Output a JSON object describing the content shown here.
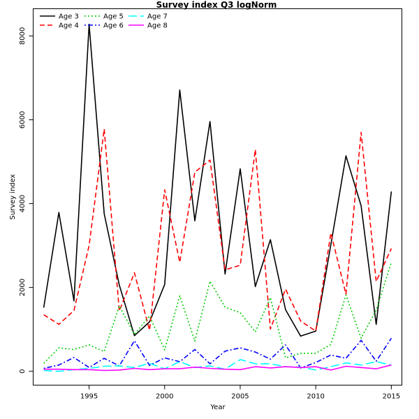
{
  "chart_data": {
    "type": "line",
    "title": "Survey index Q3 logNorm",
    "xlabel": "Year",
    "ylabel": "Survey index",
    "xlim": [
      1991.3,
      2015.7
    ],
    "ylim": [
      -330,
      8650
    ],
    "x_ticks": [
      "1995",
      "2000",
      "2005",
      "2010",
      "2015"
    ],
    "y_ticks": [
      "0",
      "2000",
      "4000",
      "6000",
      "8000"
    ],
    "grid": false,
    "legend_position": "top-left",
    "x": [
      1992,
      1993,
      1994,
      1995,
      1996,
      1997,
      1998,
      1999,
      2000,
      2001,
      2002,
      2003,
      2004,
      2005,
      2006,
      2007,
      2008,
      2009,
      2010,
      2011,
      2012,
      2013,
      2014,
      2015
    ],
    "series": [
      {
        "name": "Age 3",
        "color": "#000000",
        "dash": "solid",
        "values": [
          1520,
          3790,
          1680,
          8280,
          3760,
          2060,
          850,
          1180,
          2070,
          6710,
          3590,
          5960,
          2320,
          4830,
          2020,
          3140,
          1470,
          840,
          960,
          3020,
          5140,
          3950,
          1120,
          4290
        ]
      },
      {
        "name": "Age 4",
        "color": "#ff0000",
        "dash": "dashed",
        "values": [
          1350,
          1120,
          1450,
          3000,
          5780,
          1440,
          2350,
          980,
          4330,
          2600,
          4750,
          5040,
          2420,
          2530,
          5290,
          1010,
          1960,
          1200,
          960,
          3300,
          1840,
          5700,
          2140,
          2930
        ]
      },
      {
        "name": "Age 5",
        "color": "#00cc00",
        "dash": "dotted",
        "values": [
          190,
          560,
          520,
          630,
          470,
          1560,
          880,
          1320,
          510,
          1800,
          720,
          2150,
          1530,
          1400,
          940,
          1760,
          320,
          430,
          430,
          640,
          1820,
          790,
          1460,
          2600
        ]
      },
      {
        "name": "Age 6",
        "color": "#0000ff",
        "dash": "dotdash",
        "values": [
          70,
          150,
          330,
          90,
          310,
          130,
          730,
          140,
          320,
          230,
          520,
          180,
          480,
          560,
          460,
          290,
          630,
          80,
          210,
          390,
          310,
          740,
          240,
          790
        ]
      },
      {
        "name": "Age 7",
        "color": "#00ffff",
        "dash": "longdash",
        "values": [
          20,
          0,
          40,
          70,
          120,
          130,
          90,
          190,
          60,
          230,
          90,
          130,
          50,
          280,
          180,
          180,
          110,
          100,
          30,
          110,
          200,
          150,
          230,
          150
        ]
      },
      {
        "name": "Age 8",
        "color": "#ff00ff",
        "dash": "solid",
        "values": [
          50,
          50,
          40,
          40,
          20,
          30,
          70,
          40,
          60,
          60,
          100,
          70,
          50,
          40,
          110,
          80,
          110,
          90,
          110,
          30,
          120,
          90,
          60,
          150
        ]
      }
    ]
  }
}
